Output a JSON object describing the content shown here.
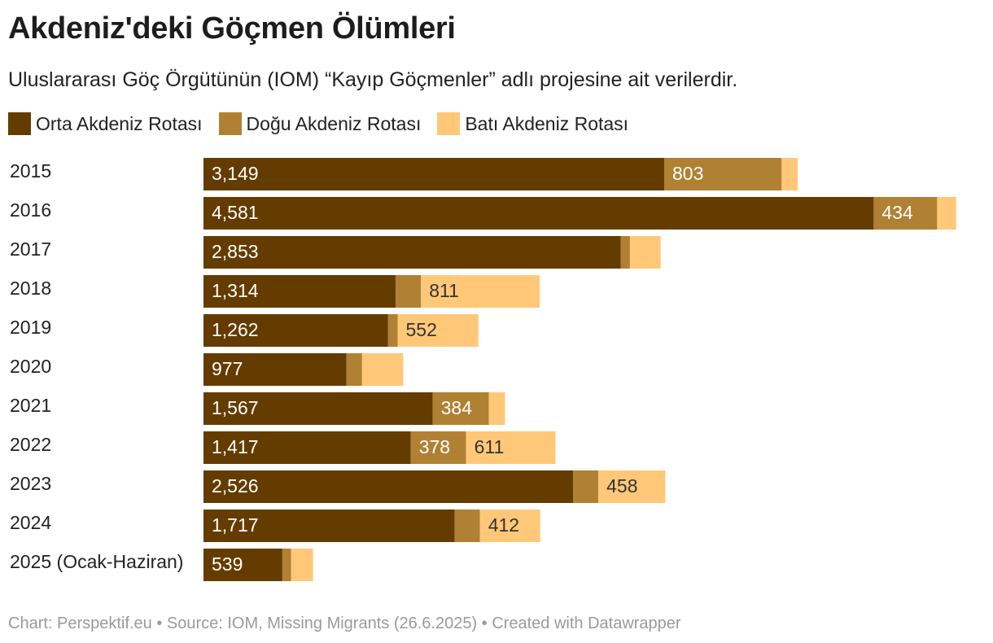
{
  "title": "Akdeniz'deki Göçmen Ölümleri",
  "subtitle": "Uluslararası Göç Örgütünün (IOM) “Kayıp Göçmenler” adlı projesine ait verilerdir.",
  "footer": "Chart: Perspektif.eu • Source: IOM, Missing Migrants (26.6.2025) • Created with Datawrapper",
  "colors": {
    "orta": "#643c00",
    "dogu": "#b08133",
    "bati": "#ffc878"
  },
  "chart_data": {
    "type": "bar",
    "orientation": "horizontal",
    "stacked": true,
    "title": "Akdeniz'deki Göçmen Ölümleri",
    "subtitle": "Uluslararası Göç Örgütünün (IOM) “Kayıp Göçmenler” adlı projesine ait verilerdir.",
    "legend_position": "top-left",
    "grid": false,
    "xlim": [
      0,
      5330
    ],
    "categories": [
      "2015",
      "2016",
      "2017",
      "2018",
      "2019",
      "2020",
      "2021",
      "2022",
      "2023",
      "2024",
      "2025 (Ocak-Haziran)"
    ],
    "series": [
      {
        "name": "Orta Akdeniz Rotası",
        "color": "#643c00",
        "label_color": "#ffffff",
        "values": [
          3149,
          4581,
          2853,
          1314,
          1262,
          977,
          1567,
          1417,
          2526,
          1717,
          539
        ],
        "labels": [
          "3,149",
          "4,581",
          "2,853",
          "1,314",
          "1,262",
          "977",
          "1,567",
          "1,417",
          "2,526",
          "1,717",
          "539"
        ]
      },
      {
        "name": "Doğu Akdeniz Rotası",
        "color": "#b08133",
        "label_color": "#ffffff",
        "values": [
          803,
          434,
          62,
          173,
          65,
          107,
          384,
          378,
          173,
          173,
          60
        ],
        "labels": [
          "803",
          "434",
          "",
          "",
          "",
          "",
          "384",
          "378",
          "",
          "",
          ""
        ]
      },
      {
        "name": "Batı Akdeniz Rotası",
        "color": "#ffc878",
        "label_color": "#333333",
        "values": [
          110,
          130,
          210,
          811,
          552,
          281,
          110,
          611,
          458,
          412,
          150
        ],
        "labels": [
          "",
          "",
          "",
          "811",
          "552",
          "",
          "",
          "611",
          "458",
          "412",
          ""
        ]
      }
    ]
  }
}
